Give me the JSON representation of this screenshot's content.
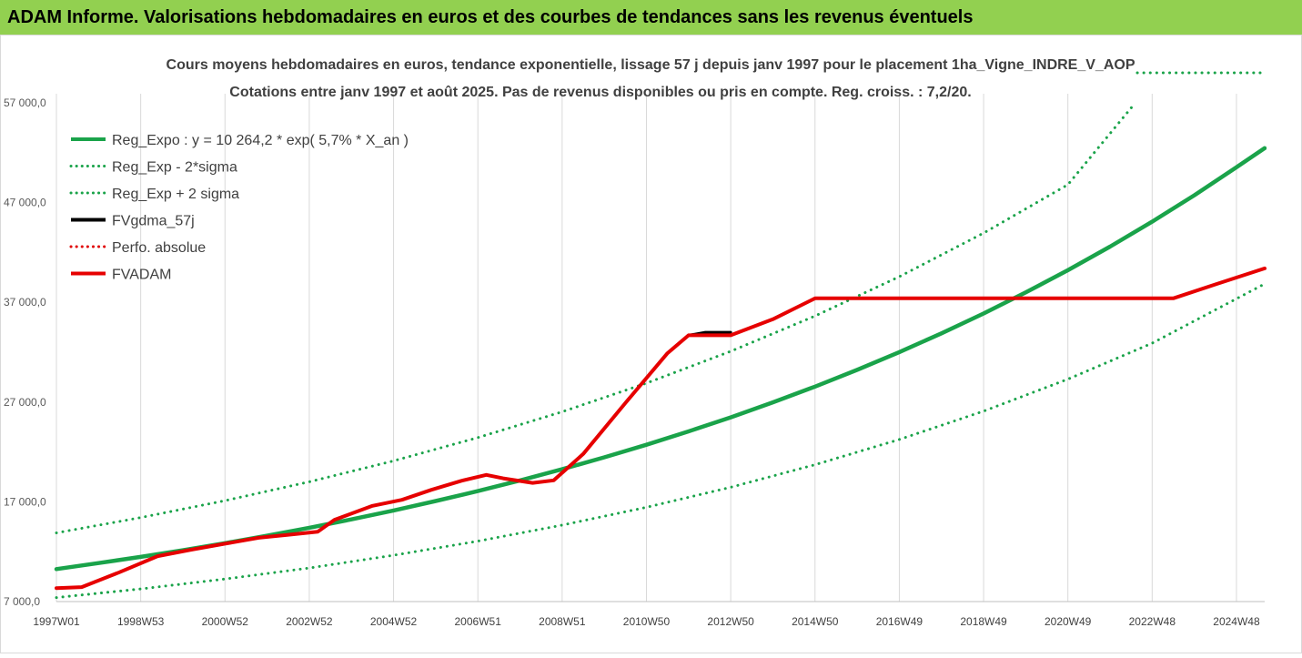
{
  "banner": {
    "title": "ADAM Informe. Valorisations hebdomadaires en euros et des courbes de tendances sans les revenus éventuels",
    "background_color": "#92d050"
  },
  "chart_data": {
    "type": "line",
    "title": "Cours moyens hebdomadaires en euros, tendance exponentielle, lissage 57 j depuis janv 1997 pour le placement 1ha_Vigne_INDRE_V_AOP",
    "subtitle": "Cotations entre janv 1997 et août 2025.  Pas de revenus disponibles ou pris en compte. Reg. croiss. : 7,2/20.",
    "y_ticks": [
      "57 000,0",
      "47 000,0",
      "37 000,0",
      "27 000,0",
      "17 000,0",
      "7 000,0"
    ],
    "y_values": [
      57000,
      47000,
      37000,
      27000,
      17000,
      7000
    ],
    "ylim": [
      7000,
      57000
    ],
    "x_ticks": [
      "1997W01",
      "1998W53",
      "2000W52",
      "2002W52",
      "2004W52",
      "2006W51",
      "2008W51",
      "2010W50",
      "2012W50",
      "2014W50",
      "2016W49",
      "2018W49",
      "2020W49",
      "2022W48",
      "2024W48"
    ],
    "x_tick_years": [
      1997.0,
      1999.0,
      2001.0,
      2003.0,
      2005.0,
      2007.0,
      2009.0,
      2011.0,
      2013.0,
      2015.0,
      2017.0,
      2019.0,
      2021.0,
      2023.0,
      2025.0
    ],
    "xlim": [
      1997.0,
      2025.67
    ],
    "grid": "vertical",
    "legend_position": "top-left",
    "series": [
      {
        "name": "Reg_Expo : y = 10 264,2 * exp( 5,7% *  X_an )",
        "color": "#1aa34a",
        "style": "solid",
        "width": 4.5,
        "x": [
          1997,
          1998,
          1999,
          2000,
          2001,
          2002,
          2003,
          2004,
          2005,
          2006,
          2007,
          2008,
          2009,
          2010,
          2011,
          2012,
          2013,
          2014,
          2015,
          2016,
          2017,
          2018,
          2019,
          2020,
          2021,
          2022,
          2023,
          2024,
          2025,
          2025.67
        ],
        "y": [
          10260,
          10860,
          11480,
          12150,
          12860,
          13610,
          14400,
          15240,
          16130,
          17080,
          18080,
          19140,
          20270,
          21460,
          22720,
          24060,
          25470,
          26970,
          28550,
          30230,
          32010,
          33890,
          35880,
          37990,
          40220,
          42580,
          45080,
          47730,
          50540,
          52460
        ]
      },
      {
        "name": "Reg_Exp - 2*sigma",
        "color": "#1aa34a",
        "style": "dotted",
        "width": 3,
        "x": [
          1997,
          1999,
          2001,
          2003,
          2005,
          2007,
          2009,
          2011,
          2013,
          2015,
          2017,
          2019,
          2021,
          2023,
          2025.67
        ],
        "y": [
          7400,
          8270,
          9260,
          10370,
          11640,
          13060,
          14660,
          16450,
          18460,
          20720,
          23250,
          26090,
          29300,
          32900,
          38850
        ]
      },
      {
        "name": "Reg_Exp + 2 sigma",
        "color": "#1aa34a",
        "style": "dotted",
        "width": 3,
        "x": [
          1997,
          1999,
          2001,
          2003,
          2005,
          2007,
          2009,
          2011,
          2013,
          2015,
          2017,
          2019,
          2021,
          2022.6
        ],
        "y": [
          13890,
          15420,
          17120,
          19010,
          21110,
          23440,
          26020,
          28900,
          32090,
          35630,
          39570,
          43940,
          48800,
          57000
        ]
      },
      {
        "name": "FVgdma_57j",
        "color": "#000000",
        "style": "solid",
        "width": 3,
        "x": [
          2008.3,
          2008.8,
          2009.5,
          2010.5,
          2011.5,
          2012.0,
          2012.4,
          2013.0
        ],
        "y": [
          18900,
          19150,
          21800,
          26900,
          31900,
          33700,
          34000,
          34000
        ]
      },
      {
        "name": "Perfo. absolue",
        "color": "#e00000",
        "style": "dotted",
        "width": 2,
        "x": [],
        "y": []
      },
      {
        "name": "FVADAM",
        "color": "#e60000",
        "style": "solid",
        "width": 4,
        "x": [
          1997.0,
          1997.6,
          1998.5,
          1999.4,
          2000.2,
          2001.0,
          2001.8,
          2002.5,
          2003.2,
          2003.6,
          2004.5,
          2005.2,
          2005.9,
          2006.6,
          2007.2,
          2007.6,
          2008.3,
          2008.8,
          2009.5,
          2010.5,
          2011.5,
          2012.0,
          2013.0,
          2014.0,
          2015.0,
          2016.0,
          2018.0,
          2020.0,
          2022.0,
          2023.5,
          2024.5,
          2025.67
        ],
        "y": [
          8350,
          8450,
          9950,
          11550,
          12200,
          12800,
          13400,
          13700,
          14000,
          15200,
          16600,
          17200,
          18200,
          19100,
          19700,
          19350,
          18900,
          19150,
          21800,
          26900,
          31900,
          33700,
          33700,
          35300,
          37400,
          37400,
          37400,
          37400,
          37400,
          37400,
          38800,
          40400
        ]
      }
    ]
  }
}
